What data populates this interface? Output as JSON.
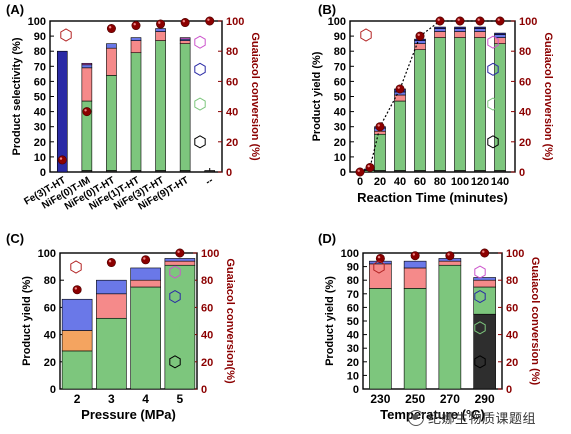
{
  "figure": {
    "watermark": "纪娜生物质课题组"
  },
  "chart_data": [
    {
      "type": "bar",
      "panel_label": "(A)",
      "categories": [
        "Fe(3)T-HT",
        "NiFe(0)T-IM",
        "NiFe(0)T-HT",
        "NiFe(1)T-HT",
        "NiFe(3)T-HT",
        "NiFe(9)T-HT",
        "--"
      ],
      "series": [
        {
          "key": "cyclohexane",
          "color": "#2e2e2e",
          "values": [
            0,
            1,
            1,
            1,
            1,
            1,
            1
          ]
        },
        {
          "key": "cyclohexanol",
          "color": "#7dc67d",
          "values": [
            0,
            46,
            63,
            78,
            86,
            84,
            0
          ]
        },
        {
          "key": "cyclohexanone",
          "color": "#f4a460",
          "values": [
            0,
            0,
            0,
            0,
            0,
            0,
            0
          ]
        },
        {
          "key": "methoxy-cyclohexanol",
          "color": "#f58a8a",
          "values": [
            0,
            22,
            18,
            8,
            6,
            2,
            0
          ]
        },
        {
          "key": "methoxy-cyclohexane",
          "color": "#6a78e8",
          "values": [
            0,
            2,
            3,
            2,
            2,
            1,
            0
          ]
        },
        {
          "key": "anisole",
          "color": "#2a2aa5",
          "values": [
            80,
            0,
            0,
            0,
            0,
            0,
            0
          ]
        },
        {
          "key": "phenol",
          "color": "#cc55cc",
          "values": [
            0,
            1,
            0,
            0,
            0,
            1,
            0
          ]
        }
      ],
      "conversion": [
        8,
        40,
        95,
        97,
        98,
        99,
        100
      ],
      "conversion_color": "#8b0000",
      "ylabel_left": "Product selectivity (%)",
      "ylabel_right": "Guaiacol conversion (%)",
      "xlabel": "",
      "ylim": [
        0,
        100
      ],
      "yticks": [
        0,
        10,
        20,
        30,
        40,
        50,
        60,
        70,
        80,
        90,
        100
      ],
      "yticks_right": [
        0,
        20,
        40,
        60,
        80,
        100
      ]
    },
    {
      "type": "bar",
      "panel_label": "(B)",
      "x": [
        0,
        10,
        20,
        40,
        60,
        80,
        100,
        120,
        140
      ],
      "categories": [
        "0",
        "20",
        "40",
        "60",
        "80",
        "100",
        "120",
        "140"
      ],
      "series": [
        {
          "key": "cyclohexane",
          "color": "#2e2e2e",
          "values": [
            0,
            0,
            1,
            1,
            1,
            1,
            1,
            1,
            1
          ]
        },
        {
          "key": "cyclohexanol",
          "color": "#7dc67d",
          "values": [
            0,
            1,
            24,
            46,
            80,
            88,
            88,
            88,
            84
          ]
        },
        {
          "key": "cyclohexanone",
          "color": "#f4a460",
          "values": [
            0,
            0,
            0,
            0,
            0,
            0,
            0,
            0,
            0
          ]
        },
        {
          "key": "methoxy-cyclohexanol",
          "color": "#f58a8a",
          "values": [
            0,
            0,
            2,
            4,
            4,
            4,
            4,
            4,
            4
          ]
        },
        {
          "key": "methoxy-cyclohexane",
          "color": "#6a78e8",
          "values": [
            0,
            0,
            2,
            2,
            2,
            2,
            2,
            2,
            2
          ]
        },
        {
          "key": "anisole",
          "color": "#2a2aa5",
          "values": [
            0,
            1,
            1,
            2,
            1,
            1,
            1,
            1,
            1
          ]
        }
      ],
      "conversion": [
        0,
        3,
        30,
        55,
        90,
        100,
        100,
        100,
        100
      ],
      "conversion_color": "#8b0000",
      "ylabel_left": "Product yield (%)",
      "ylabel_right": "Guaiacol conversion (%)",
      "xlabel": "Reaction Time (minutes)",
      "ylim": [
        0,
        100
      ],
      "yticks": [
        0,
        10,
        20,
        30,
        40,
        50,
        60,
        70,
        80,
        90,
        100
      ],
      "yticks_right": [
        0,
        20,
        40,
        60,
        80,
        100
      ]
    },
    {
      "type": "bar",
      "panel_label": "(C)",
      "categories": [
        "2",
        "3",
        "4",
        "5"
      ],
      "series": [
        {
          "key": "cyclohexane",
          "color": "#2e2e2e",
          "values": [
            0,
            0,
            0,
            0
          ]
        },
        {
          "key": "cyclohexanol",
          "color": "#7dc67d",
          "values": [
            28,
            52,
            75,
            91
          ]
        },
        {
          "key": "cyclohexanone",
          "color": "#f4a460",
          "values": [
            15,
            0,
            0,
            0
          ]
        },
        {
          "key": "methoxy-cyclohexanol",
          "color": "#f58a8a",
          "values": [
            0,
            18,
            5,
            3
          ]
        },
        {
          "key": "methoxy-cyclohexane",
          "color": "#6a78e8",
          "values": [
            23,
            10,
            9,
            2
          ]
        }
      ],
      "conversion": [
        73,
        93,
        95,
        100
      ],
      "conversion_color": "#8b0000",
      "ylabel_left": "Product yield (%)",
      "ylabel_right": "Guaiacol conversion(%)",
      "xlabel": "Pressure (MPa)",
      "ylim": [
        0,
        100
      ],
      "yticks": [
        0,
        20,
        40,
        60,
        80,
        100
      ],
      "yticks_right": [
        0,
        20,
        40,
        60,
        80,
        100
      ]
    },
    {
      "type": "bar",
      "panel_label": "(D)",
      "categories": [
        "230",
        "250",
        "270",
        "290"
      ],
      "series": [
        {
          "key": "cyclohexane",
          "color": "#2e2e2e",
          "values": [
            0,
            0,
            0,
            55
          ]
        },
        {
          "key": "cyclohexanol",
          "color": "#7dc67d",
          "values": [
            74,
            74,
            91,
            20
          ]
        },
        {
          "key": "cyclohexanone",
          "color": "#f4a460",
          "values": [
            0,
            0,
            0,
            0
          ]
        },
        {
          "key": "methoxy-cyclohexanol",
          "color": "#f58a8a",
          "values": [
            18,
            15,
            3,
            5
          ]
        },
        {
          "key": "methoxy-cyclohexane",
          "color": "#6a78e8",
          "values": [
            2,
            5,
            2,
            2
          ]
        }
      ],
      "conversion": [
        96,
        98,
        98,
        100
      ],
      "conversion_color": "#8b0000",
      "ylabel_left": "Product yield (%)",
      "ylabel_right": "Guaiacol conversion (%)",
      "xlabel": "Temperature (°C)",
      "ylim": [
        0,
        100
      ],
      "yticks": [
        0,
        10,
        20,
        30,
        40,
        50,
        60,
        70,
        80,
        90,
        100
      ],
      "yticks_right": [
        0,
        20,
        40,
        60,
        80,
        100
      ]
    }
  ]
}
